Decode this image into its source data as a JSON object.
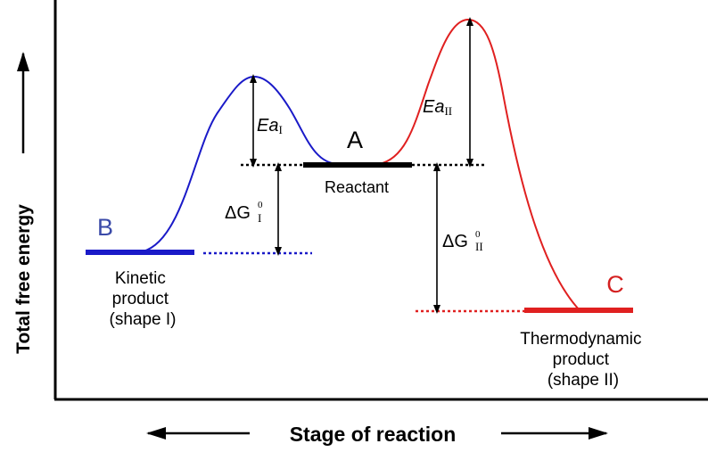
{
  "axes": {
    "y_label": "Total free energy",
    "x_label": "Stage of reaction"
  },
  "states": {
    "reactant": {
      "letter": "A",
      "name": "Reactant"
    },
    "kinetic": {
      "letter": "B",
      "name_lines": [
        "Kinetic",
        "product",
        "(shape I)"
      ]
    },
    "thermo": {
      "letter": "C",
      "name_lines": [
        "Thermodynamic",
        "product",
        "(shape II)"
      ]
    }
  },
  "annotations": {
    "ea1_main": "Ea",
    "ea1_sub": "I",
    "ea2_main": "Ea",
    "ea2_sub": "II",
    "dg1_main": "ΔG",
    "dg1_sup": "0",
    "dg1_sub": "I",
    "dg2_main": "ΔG",
    "dg2_sup": "0",
    "dg2_sub": "II"
  },
  "colors": {
    "kinetic": "#1a1ac8",
    "thermo": "#e02020",
    "reactant": "#000000",
    "letter_b": "#3a4aa8",
    "letter_c": "#d42020"
  }
}
